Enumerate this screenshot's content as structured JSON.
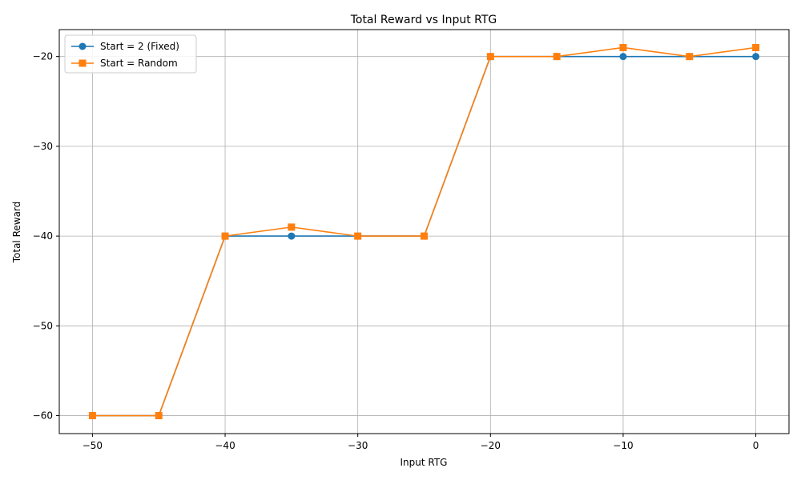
{
  "chart_data": {
    "type": "line",
    "title": "Total Reward vs Input RTG",
    "xlabel": "Input RTG",
    "ylabel": "Total Reward",
    "x": [
      -50,
      -45,
      -40,
      -35,
      -30,
      -25,
      -20,
      -15,
      -10,
      -5,
      0
    ],
    "xlim": [
      -52.5,
      2.5
    ],
    "ylim": [
      -62,
      -17
    ],
    "xticks": [
      -50,
      -40,
      -30,
      -20,
      -10,
      0
    ],
    "yticks": [
      -60,
      -50,
      -40,
      -30,
      -20
    ],
    "xtick_labels": [
      "−50",
      "−40",
      "−30",
      "−20",
      "−10",
      "0"
    ],
    "ytick_labels": [
      "−60",
      "−50",
      "−40",
      "−30",
      "−20"
    ],
    "grid": true,
    "legend_position": "top-left",
    "series": [
      {
        "name": "Start = 2 (Fixed)",
        "values": [
          -60,
          -60,
          -40,
          -40,
          -40,
          -40,
          -20,
          -20,
          -20,
          -20,
          -20
        ],
        "color": "#1f77b4",
        "marker": "circle"
      },
      {
        "name": "Start = Random",
        "values": [
          -60,
          -60,
          -40,
          -39,
          -40,
          -40,
          -20,
          -20,
          -19,
          -20,
          -19
        ],
        "color": "#ff7f0e",
        "marker": "square"
      }
    ]
  }
}
